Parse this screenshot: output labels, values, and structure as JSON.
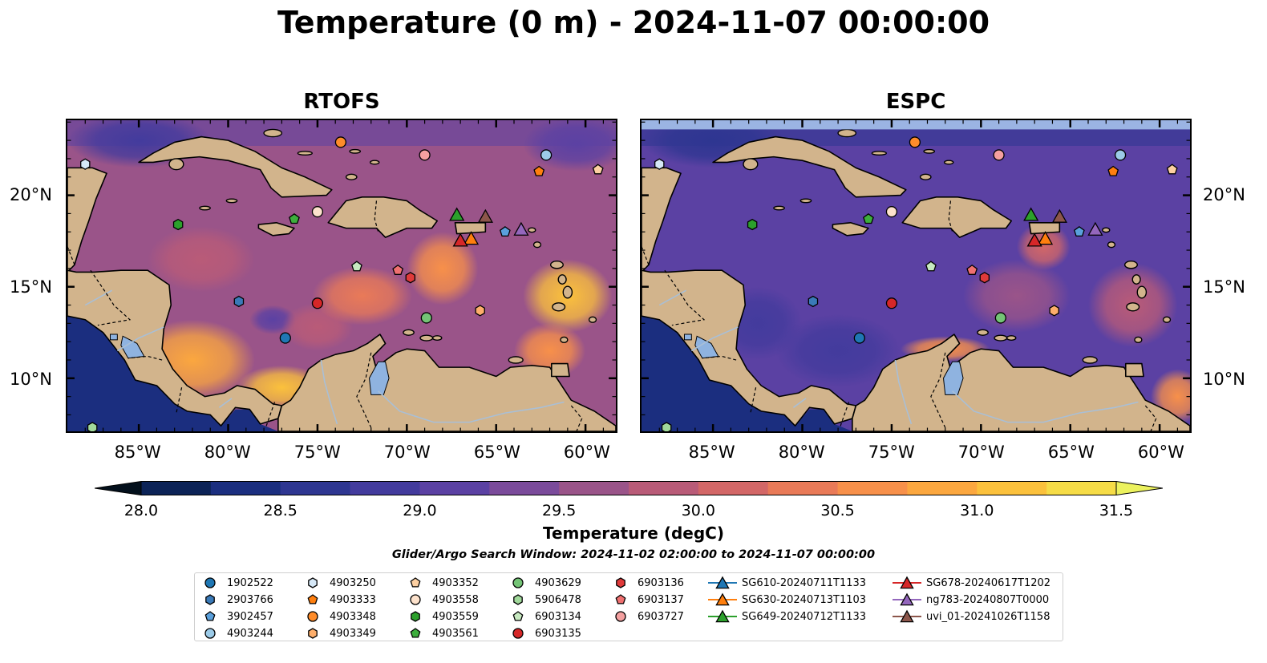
{
  "figure": {
    "title": "Temperature (0 m) - 2024-11-07 00:00:00",
    "panels": [
      {
        "title": "RTOFS",
        "model": "rtofs"
      },
      {
        "title": "ESPC",
        "model": "espc"
      }
    ],
    "colorbar_label": "Temperature (degC)",
    "search_window": "Glider/Argo Search Window: 2024-11-02 02:00:00 to 2024-11-07 00:00:00"
  },
  "chart_data": {
    "type": "heatmap",
    "variable": "Temperature",
    "depth_m": 0,
    "time": "2024-11-07 00:00:00",
    "units": "degC",
    "xlim": [
      -89,
      -58.3
    ],
    "ylim": [
      7.1,
      24.1
    ],
    "x_ticks": [
      -85,
      -80,
      -75,
      -70,
      -65,
      -60
    ],
    "x_tick_labels": [
      "85°W",
      "80°W",
      "75°W",
      "70°W",
      "65°W",
      "60°W"
    ],
    "y_ticks": [
      10,
      15,
      20
    ],
    "y_tick_labels": [
      "10°N",
      "15°N",
      "20°N"
    ],
    "colorbar": {
      "levels": [
        28.0,
        28.25,
        28.5,
        28.75,
        29.0,
        29.25,
        29.5,
        29.75,
        30.0,
        30.25,
        30.5,
        30.75,
        31.0,
        31.25,
        31.5
      ],
      "tick_values": [
        28.0,
        28.5,
        29.0,
        29.5,
        30.0,
        30.5,
        31.0,
        31.5
      ],
      "tick_labels": [
        "28.0",
        "28.5",
        "29.0",
        "29.5",
        "30.0",
        "30.5",
        "31.0",
        "31.5"
      ],
      "colors": [
        "#03101c",
        "#0c2357",
        "#1b2e7f",
        "#2e3691",
        "#433b9d",
        "#5b41a3",
        "#7b4b9b",
        "#9a5489",
        "#b95b78",
        "#d36767",
        "#e97a58",
        "#f7904a",
        "#fba73f",
        "#fbc13c",
        "#f6dc47",
        "#ecf25e"
      ]
    },
    "rtofs_field": {
      "background_level": 29.5,
      "warm_patches": [
        {
          "lon": -82.0,
          "lat": 11.0,
          "rx": 3.5,
          "ry": 2.2,
          "value": 30.75
        },
        {
          "lon": -77.0,
          "lat": 9.5,
          "rx": 2.5,
          "ry": 1.2,
          "value": 31.0
        },
        {
          "lon": -68.0,
          "lat": 16.0,
          "rx": 2.0,
          "ry": 2.0,
          "value": 30.5
        },
        {
          "lon": -61.0,
          "lat": 14.5,
          "rx": 2.5,
          "ry": 2.0,
          "value": 31.0
        },
        {
          "lon": -62.0,
          "lat": 11.5,
          "rx": 2.0,
          "ry": 1.5,
          "value": 30.5
        },
        {
          "lon": -75.0,
          "lat": 12.8,
          "rx": 2.0,
          "ry": 1.3,
          "value": 29.75
        },
        {
          "lon": -72.5,
          "lat": 14.5,
          "rx": 2.8,
          "ry": 1.6,
          "value": 30.25
        },
        {
          "lon": -81.5,
          "lat": 16.5,
          "rx": 3.0,
          "ry": 1.8,
          "value": 29.75
        }
      ],
      "cool_patches": [
        {
          "lon": -85.0,
          "lat": 23.0,
          "rx": 4.0,
          "ry": 1.5,
          "value": 28.75
        },
        {
          "lon": -60.5,
          "lat": 22.8,
          "rx": 3.0,
          "ry": 1.5,
          "value": 29.0
        },
        {
          "lon": -77.5,
          "lat": 13.2,
          "rx": 1.3,
          "ry": 0.8,
          "value": 29.0
        }
      ]
    },
    "espc_field": {
      "background_level": 29.0,
      "warm_patches": [
        {
          "lon": -72.0,
          "lat": 11.6,
          "rx": 2.5,
          "ry": 0.7,
          "value": 30.5
        },
        {
          "lon": -66.5,
          "lat": 17.2,
          "rx": 1.5,
          "ry": 1.3,
          "value": 30.0
        },
        {
          "lon": -61.5,
          "lat": 14.0,
          "rx": 2.5,
          "ry": 2.3,
          "value": 29.75
        },
        {
          "lon": -68.0,
          "lat": 14.5,
          "rx": 3.0,
          "ry": 2.0,
          "value": 29.5
        },
        {
          "lon": -59.0,
          "lat": 9.0,
          "rx": 1.5,
          "ry": 1.5,
          "value": 30.5
        }
      ],
      "cool_patches": [
        {
          "lon": -78.0,
          "lat": 11.5,
          "rx": 3.5,
          "ry": 2.0,
          "value": 28.75
        },
        {
          "lon": -82.5,
          "lat": 13.0,
          "rx": 2.5,
          "ry": 2.0,
          "value": 28.75
        },
        {
          "lon": -85.0,
          "lat": 23.0,
          "rx": 4.0,
          "ry": 1.5,
          "value": 28.5
        }
      ]
    },
    "espc_masked_lat_above": 23.6,
    "platforms": [
      {
        "id": "1902522",
        "marker": "o",
        "color": "#1f77b4",
        "lon": -76.8,
        "lat": 12.2
      },
      {
        "id": "2903766",
        "marker": "h",
        "color": "#3a7ab8",
        "lon": -79.4,
        "lat": 14.2
      },
      {
        "id": "3902457",
        "marker": "p",
        "color": "#5aa0dc",
        "lon": -64.5,
        "lat": 18.0
      },
      {
        "id": "4903244",
        "marker": "o",
        "color": "#9ccbe8",
        "lon": -62.2,
        "lat": 22.2
      },
      {
        "id": "4903250",
        "marker": "h",
        "color": "#d6e8f7",
        "lon": -88.0,
        "lat": 21.7
      },
      {
        "id": "4903333",
        "marker": "p",
        "color": "#ff7f0e",
        "lon": -62.6,
        "lat": 21.3
      },
      {
        "id": "4903348",
        "marker": "o",
        "color": "#ff8c2a",
        "lon": -73.7,
        "lat": 22.9
      },
      {
        "id": "4903349",
        "marker": "h",
        "color": "#fdae6b",
        "lon": -65.9,
        "lat": 13.7
      },
      {
        "id": "4903352",
        "marker": "p",
        "color": "#fdd0a2",
        "lon": -59.3,
        "lat": 21.4
      },
      {
        "id": "4903558",
        "marker": "o",
        "color": "#fde2cc",
        "lon": -75.0,
        "lat": 19.1
      },
      {
        "id": "4903559",
        "marker": "h",
        "color": "#2ca02c",
        "lon": -82.8,
        "lat": 18.4
      },
      {
        "id": "4903561",
        "marker": "p",
        "color": "#3dae3d",
        "lon": -76.3,
        "lat": 18.7
      },
      {
        "id": "4903629",
        "marker": "o",
        "color": "#74c476",
        "lon": -68.9,
        "lat": 13.3
      },
      {
        "id": "5906478",
        "marker": "h",
        "color": "#a1d99b",
        "lon": -87.6,
        "lat": 7.3
      },
      {
        "id": "6903134",
        "marker": "p",
        "color": "#c7e9c0",
        "lon": -72.8,
        "lat": 16.1
      },
      {
        "id": "6903135",
        "marker": "o",
        "color": "#d62728",
        "lon": -75.0,
        "lat": 14.1
      },
      {
        "id": "6903136",
        "marker": "h",
        "color": "#e03a3a",
        "lon": -69.8,
        "lat": 15.5
      },
      {
        "id": "6903137",
        "marker": "p",
        "color": "#f07070",
        "lon": -70.5,
        "lat": 15.9
      },
      {
        "id": "6903727",
        "marker": "o",
        "color": "#f4a0a0",
        "lon": -69.0,
        "lat": 22.2
      }
    ],
    "gliders": [
      {
        "id": "SG610-20240711T1133",
        "color": "#1f77b4",
        "lon": null,
        "lat": null
      },
      {
        "id": "SG630-20240713T1103",
        "color": "#ff7f0e",
        "lon": -66.4,
        "lat": 17.6
      },
      {
        "id": "SG649-20240712T1133",
        "color": "#2ca02c",
        "lon": -67.2,
        "lat": 18.9
      },
      {
        "id": "SG678-20240617T1202",
        "color": "#d62728",
        "lon": -67.0,
        "lat": 17.5
      },
      {
        "id": "ng783-20240807T0000",
        "color": "#9467bd",
        "lon": -63.6,
        "lat": 18.1
      },
      {
        "id": "uvi_01-20241026T1158",
        "color": "#8c564b",
        "lon": -65.6,
        "lat": 18.8
      }
    ],
    "colors": {
      "land": "#d2b48c",
      "lake": "#8fb3e0",
      "river": "#a9bfd6",
      "mask": "#9bb4e3"
    }
  }
}
